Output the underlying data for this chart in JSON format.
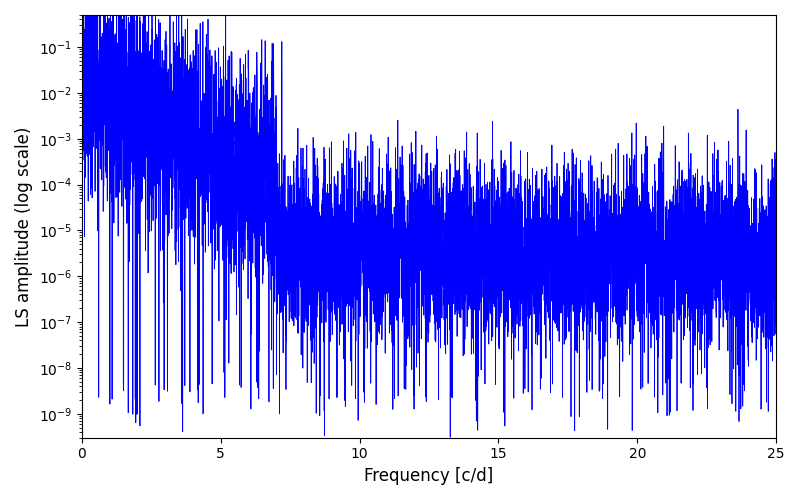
{
  "line_color": "#0000ff",
  "xlabel": "Frequency [c/d]",
  "ylabel": "LS amplitude (log scale)",
  "xmin": 0,
  "xmax": 25,
  "ymin": 3e-10,
  "ymax": 0.5,
  "background_color": "#ffffff",
  "linewidth": 0.6,
  "seed": 123,
  "n_points": 8000
}
